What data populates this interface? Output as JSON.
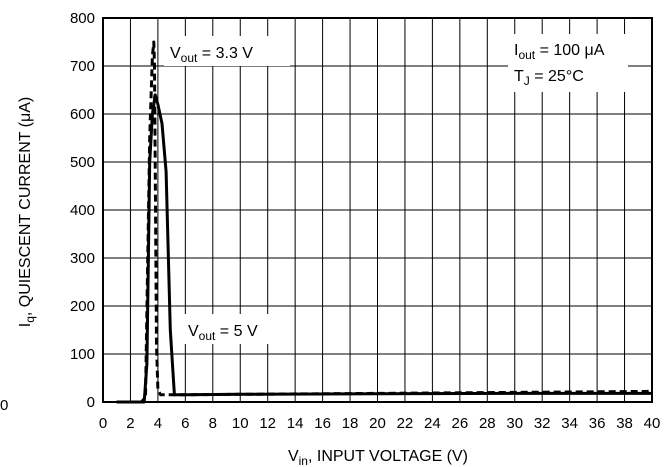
{
  "chart_data": {
    "type": "line",
    "xlabel": {
      "main": "V",
      "sub": "in",
      "rest": ", INPUT VOLTAGE (V)"
    },
    "ylabel": {
      "main": "I",
      "sub": "q",
      "rest": ", QUIESCENT CURRENT (μA)"
    },
    "xlim": [
      0,
      40
    ],
    "ylim": [
      0,
      800
    ],
    "x_ticks": [
      "0",
      "2",
      "4",
      "6",
      "8",
      "10",
      "12",
      "14",
      "16",
      "18",
      "20",
      "22",
      "24",
      "26",
      "28",
      "30",
      "32",
      "34",
      "36",
      "38",
      "40"
    ],
    "y_ticks": [
      "0",
      "100",
      "200",
      "300",
      "400",
      "500",
      "600",
      "700",
      "800"
    ],
    "stray_label": "0",
    "grid": true,
    "series": [
      {
        "id": "vout-5v",
        "style": "solid",
        "x": [
          1.0,
          3.0,
          3.2,
          3.4,
          3.6,
          3.8,
          4.0,
          4.3,
          4.6,
          4.9,
          5.2,
          6,
          10,
          20,
          30,
          40
        ],
        "y": [
          0,
          0,
          80,
          500,
          600,
          640,
          620,
          580,
          480,
          150,
          15,
          15,
          16,
          17,
          18,
          18
        ]
      },
      {
        "id": "vout-3.3v",
        "style": "dashed",
        "x": [
          1.0,
          2.8,
          3.1,
          3.4,
          3.6,
          3.7,
          3.75,
          3.8,
          3.9,
          4.0,
          4.2,
          6,
          10,
          20,
          30,
          40
        ],
        "y": [
          0,
          0,
          10,
          550,
          720,
          750,
          700,
          500,
          120,
          25,
          15,
          15,
          16,
          18,
          20,
          22
        ]
      }
    ],
    "annotations": [
      {
        "main": "V",
        "sub": "out",
        "rest": " = 3.3 V"
      },
      {
        "main": "V",
        "sub": "out",
        "rest": " = 5 V"
      },
      {
        "main": "I",
        "sub": "out",
        "rest": " = 100 μA"
      },
      {
        "main": "T",
        "sub": "J",
        "rest": " = 25°C"
      }
    ]
  }
}
